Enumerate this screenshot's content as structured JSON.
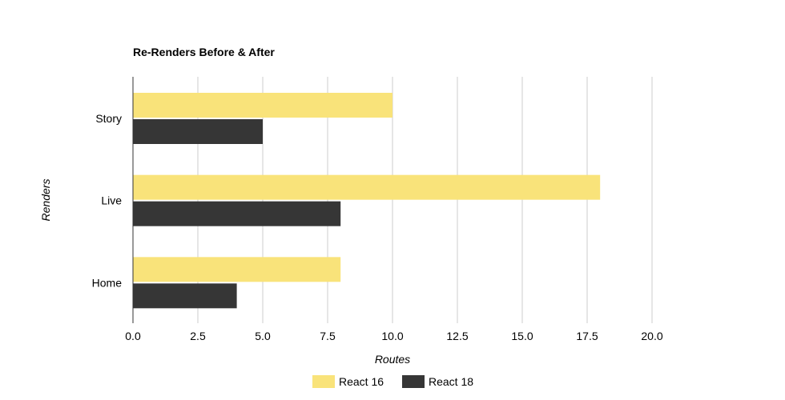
{
  "chart_data": {
    "type": "bar",
    "orientation": "horizontal",
    "title": "Re-Renders Before & After",
    "xlabel": "Routes",
    "ylabel": "Renders",
    "categories": [
      "Story",
      "Live",
      "Home"
    ],
    "series": [
      {
        "name": "React 16",
        "values": [
          10,
          18,
          8
        ],
        "color": "#F9E37A"
      },
      {
        "name": "React 18",
        "values": [
          5,
          8,
          4
        ],
        "color": "#363636"
      }
    ],
    "xlim": [
      0,
      20
    ],
    "xticks": [
      "0.0",
      "2.5",
      "5.0",
      "7.5",
      "10.0",
      "12.5",
      "15.0",
      "17.5",
      "20.0"
    ],
    "grid": true,
    "legend_position": "bottom",
    "gridline_color": "#CCCCCC",
    "axis_color": "#333333"
  }
}
